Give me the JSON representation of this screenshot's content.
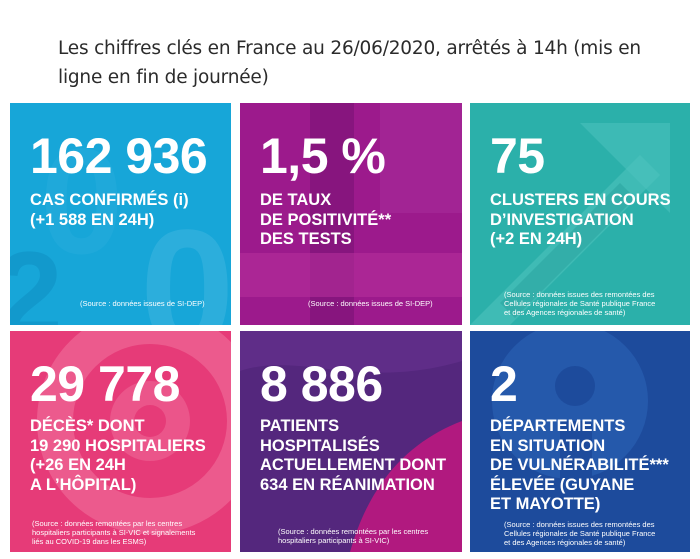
{
  "headline": "Les chiffres clés en France au 26/06/2020, arrêtés à 14h (mis en ligne en fin de journée)",
  "tiles": [
    {
      "number": "162 936",
      "label": "CAS CONFIRMÉS (i)\n(+1 588 EN 24H)",
      "source": "(Source : données issues de SI-DEP)",
      "color": "#17a6d8"
    },
    {
      "number": "1,5 %",
      "label": "DE TAUX\nDE POSITIVITÉ**\nDES TESTS",
      "source": "(Source : données issues de SI-DEP)",
      "color": "#9c1a8c"
    },
    {
      "number": "75",
      "label": "CLUSTERS EN COURS\nD’INVESTIGATION\n(+2 EN 24H)",
      "source": "(Source : données issues des remontées des\nCellules régionales de Santé publique France\net des Agences régionales de santé)",
      "color": "#2bb0aa"
    },
    {
      "number": "29 778",
      "label": "DÉCÈS* DONT\n19 290 HOSPITALIERS\n(+26 EN 24H\nA L’HÔPITAL)",
      "source": "(Source : données remontées par les centres\nhospitaliers participants à SI-VIC et signalements\nliés au COVID-19 dans les ESMS)",
      "color": "#e63b78"
    },
    {
      "number": "8 886",
      "label": "PATIENTS\nHOSPITALISÉS\nACTUELLEMENT DONT\n634 EN RÉANIMATION",
      "source": "(Source : données remontées par les centres\nhospitaliers participants à SI-VIC)",
      "color": "#54277d"
    },
    {
      "number": "2",
      "label": "DÉPARTEMENTS\nEN SITUATION\nDE VULNÉRABILITÉ***\nÉLEVÉE (GUYANE\nET MAYOTTE)",
      "source": "(Source : données issues des remontées des\nCellules régionales de Santé publique France\net des Agences régionales de santé)",
      "color": "#1d4b9c"
    }
  ]
}
